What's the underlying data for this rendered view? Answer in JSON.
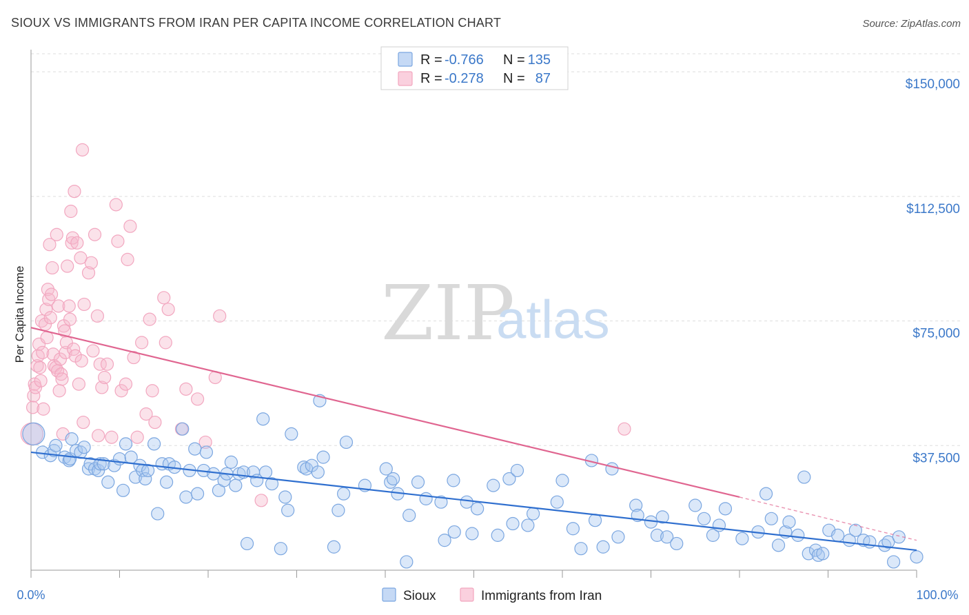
{
  "title": "SIOUX VS IMMIGRANTS FROM IRAN PER CAPITA INCOME CORRELATION CHART",
  "source": "Source: ZipAtlas.com",
  "watermark": {
    "zip": "ZIP",
    "atlas": "atlas"
  },
  "legend": {
    "rows": [
      {
        "r_label": "R =",
        "r_value": "-0.766",
        "n_label": "N =",
        "n_value": "135",
        "color": "#7aa6e0"
      },
      {
        "r_label": "R =",
        "r_value": "-0.278",
        "n_label": "N =",
        "n_value": "87",
        "color": "#f2a6bf"
      }
    ]
  },
  "bottom_legend": [
    {
      "label": "Sioux",
      "color": "#7aa6e0"
    },
    {
      "label": "Immigrants from Iran",
      "color": "#f2a6bf"
    }
  ],
  "chart_data": {
    "type": "scatter",
    "title": "SIOUX VS IMMIGRANTS FROM IRAN PER CAPITA INCOME CORRELATION CHART",
    "xlabel": "",
    "ylabel": "Per Capita Income",
    "xlim": [
      0,
      100
    ],
    "ylim": [
      0,
      155000
    ],
    "x_tick_labels": [
      "0.0%",
      "100.0%"
    ],
    "y_ticks": [
      37500,
      75000,
      112500,
      150000
    ],
    "y_tick_labels": [
      "$37,500",
      "$75,000",
      "$112,500",
      "$150,000"
    ],
    "grid": true,
    "series": [
      {
        "name": "Sioux",
        "color": "#7aa6e0",
        "line_color": "#2f6fcf",
        "trend": {
          "x": [
            0,
            100
          ],
          "y": [
            35500,
            6000
          ]
        },
        "points": [
          [
            0.3,
            41000
          ],
          [
            1.3,
            35500
          ],
          [
            2.2,
            34500
          ],
          [
            2.6,
            36000
          ],
          [
            2.8,
            37500
          ],
          [
            3.8,
            34000
          ],
          [
            4.3,
            33000
          ],
          [
            4.4,
            33500
          ],
          [
            4.6,
            39500
          ],
          [
            5.1,
            36000
          ],
          [
            5.6,
            35500
          ],
          [
            6.0,
            37000
          ],
          [
            6.5,
            30500
          ],
          [
            6.7,
            32000
          ],
          [
            7.2,
            30500
          ],
          [
            7.6,
            30000
          ],
          [
            7.8,
            32000
          ],
          [
            8.2,
            32000
          ],
          [
            8.7,
            26500
          ],
          [
            9.4,
            31500
          ],
          [
            10.0,
            33500
          ],
          [
            10.4,
            24000
          ],
          [
            10.7,
            38000
          ],
          [
            11.3,
            34000
          ],
          [
            11.8,
            28000
          ],
          [
            12.3,
            31500
          ],
          [
            12.6,
            30000
          ],
          [
            12.9,
            27500
          ],
          [
            13.2,
            30000
          ],
          [
            13.9,
            38000
          ],
          [
            14.3,
            17000
          ],
          [
            14.8,
            32000
          ],
          [
            15.3,
            26500
          ],
          [
            15.6,
            32000
          ],
          [
            16.2,
            31000
          ],
          [
            17.1,
            42500
          ],
          [
            17.5,
            22000
          ],
          [
            17.9,
            30000
          ],
          [
            18.8,
            23000
          ],
          [
            18.5,
            36500
          ],
          [
            19.5,
            30000
          ],
          [
            19.8,
            35500
          ],
          [
            20.6,
            29000
          ],
          [
            21.2,
            24000
          ],
          [
            21.8,
            27000
          ],
          [
            22.1,
            29000
          ],
          [
            22.6,
            32500
          ],
          [
            23.1,
            25500
          ],
          [
            23.5,
            29000
          ],
          [
            24.0,
            29500
          ],
          [
            24.4,
            8000
          ],
          [
            25.1,
            29500
          ],
          [
            25.5,
            27000
          ],
          [
            26.2,
            45500
          ],
          [
            26.5,
            29500
          ],
          [
            27.2,
            26000
          ],
          [
            28.2,
            6500
          ],
          [
            28.7,
            22000
          ],
          [
            29.0,
            18000
          ],
          [
            29.4,
            41000
          ],
          [
            30.8,
            31000
          ],
          [
            31.1,
            30500
          ],
          [
            31.7,
            31500
          ],
          [
            32.4,
            29500
          ],
          [
            32.6,
            51000
          ],
          [
            33.0,
            34000
          ],
          [
            34.2,
            7000
          ],
          [
            34.7,
            18000
          ],
          [
            35.3,
            23000
          ],
          [
            35.6,
            38500
          ],
          [
            37.7,
            25500
          ],
          [
            40.1,
            30500
          ],
          [
            40.6,
            26500
          ],
          [
            40.9,
            27500
          ],
          [
            41.4,
            23000
          ],
          [
            42.4,
            2500
          ],
          [
            42.7,
            16500
          ],
          [
            43.7,
            26500
          ],
          [
            44.6,
            21500
          ],
          [
            46.3,
            20500
          ],
          [
            46.7,
            9000
          ],
          [
            47.7,
            27000
          ],
          [
            47.8,
            11500
          ],
          [
            49.2,
            20500
          ],
          [
            49.8,
            11000
          ],
          [
            50.4,
            18500
          ],
          [
            52.2,
            25500
          ],
          [
            52.7,
            10500
          ],
          [
            54.0,
            27500
          ],
          [
            54.4,
            14000
          ],
          [
            54.9,
            30000
          ],
          [
            56.1,
            13500
          ],
          [
            56.7,
            17000
          ],
          [
            59.4,
            20500
          ],
          [
            60.0,
            27000
          ],
          [
            61.2,
            12500
          ],
          [
            62.1,
            6500
          ],
          [
            63.3,
            33000
          ],
          [
            63.7,
            15000
          ],
          [
            64.6,
            7000
          ],
          [
            65.6,
            30500
          ],
          [
            66.3,
            10000
          ],
          [
            68.3,
            19500
          ],
          [
            68.5,
            16500
          ],
          [
            70.0,
            14500
          ],
          [
            70.7,
            10500
          ],
          [
            71.3,
            16000
          ],
          [
            71.8,
            10000
          ],
          [
            72.9,
            8000
          ],
          [
            75.0,
            19500
          ],
          [
            76.0,
            15500
          ],
          [
            77.0,
            10500
          ],
          [
            77.7,
            13500
          ],
          [
            78.4,
            18500
          ],
          [
            80.3,
            9500
          ],
          [
            82.1,
            11500
          ],
          [
            83.0,
            23000
          ],
          [
            83.6,
            15500
          ],
          [
            84.4,
            7500
          ],
          [
            85.2,
            11500
          ],
          [
            85.6,
            14500
          ],
          [
            86.6,
            10500
          ],
          [
            87.3,
            28000
          ],
          [
            87.8,
            5000
          ],
          [
            88.6,
            6000
          ],
          [
            88.9,
            4500
          ],
          [
            89.4,
            5000
          ],
          [
            90.1,
            12000
          ],
          [
            91.1,
            10500
          ],
          [
            92.4,
            9000
          ],
          [
            93.1,
            12000
          ],
          [
            94.0,
            9000
          ],
          [
            94.7,
            8500
          ],
          [
            96.4,
            7500
          ],
          [
            96.8,
            8500
          ],
          [
            97.4,
            2500
          ],
          [
            98.0,
            10000
          ],
          [
            100.0,
            4000
          ]
        ]
      },
      {
        "name": "Immigrants from Iran",
        "color": "#f2a6bf",
        "line_color": "#e06590",
        "trend": {
          "x": [
            0,
            80
          ],
          "y": [
            73000,
            22000
          ]
        },
        "trend_dashed": {
          "x": [
            80,
            100
          ],
          "y": [
            22000,
            9000
          ]
        },
        "points": [
          [
            0.1,
            41000
          ],
          [
            0.2,
            49000
          ],
          [
            0.3,
            52500
          ],
          [
            0.4,
            56000
          ],
          [
            0.5,
            55000
          ],
          [
            0.7,
            61500
          ],
          [
            0.8,
            64500
          ],
          [
            0.9,
            68000
          ],
          [
            1.0,
            61000
          ],
          [
            1.1,
            57000
          ],
          [
            1.2,
            75000
          ],
          [
            1.3,
            65500
          ],
          [
            1.4,
            48500
          ],
          [
            1.6,
            74000
          ],
          [
            1.7,
            78500
          ],
          [
            1.8,
            70000
          ],
          [
            1.9,
            84500
          ],
          [
            2.0,
            81500
          ],
          [
            2.1,
            98000
          ],
          [
            2.2,
            76000
          ],
          [
            2.3,
            83000
          ],
          [
            2.4,
            91000
          ],
          [
            2.5,
            65000
          ],
          [
            2.6,
            61500
          ],
          [
            2.8,
            61000
          ],
          [
            2.9,
            101000
          ],
          [
            3.0,
            60000
          ],
          [
            3.1,
            79500
          ],
          [
            3.2,
            54000
          ],
          [
            3.3,
            63500
          ],
          [
            3.4,
            59000
          ],
          [
            3.5,
            57500
          ],
          [
            3.6,
            41000
          ],
          [
            3.7,
            73500
          ],
          [
            3.8,
            72000
          ],
          [
            3.9,
            65500
          ],
          [
            4.0,
            68500
          ],
          [
            4.1,
            91500
          ],
          [
            4.3,
            79500
          ],
          [
            4.4,
            75500
          ],
          [
            4.5,
            108000
          ],
          [
            4.6,
            98500
          ],
          [
            4.7,
            100000
          ],
          [
            4.8,
            66500
          ],
          [
            4.9,
            114000
          ],
          [
            5.0,
            64500
          ],
          [
            5.2,
            98500
          ],
          [
            5.4,
            56000
          ],
          [
            5.6,
            94000
          ],
          [
            5.7,
            63000
          ],
          [
            5.8,
            126500
          ],
          [
            5.9,
            44500
          ],
          [
            6.0,
            80000
          ],
          [
            6.5,
            89500
          ],
          [
            6.8,
            92500
          ],
          [
            7.0,
            66000
          ],
          [
            7.2,
            101000
          ],
          [
            7.5,
            76500
          ],
          [
            7.6,
            40500
          ],
          [
            7.8,
            62000
          ],
          [
            8.0,
            55000
          ],
          [
            8.3,
            58000
          ],
          [
            8.6,
            62000
          ],
          [
            9.1,
            40000
          ],
          [
            9.6,
            110000
          ],
          [
            9.8,
            99000
          ],
          [
            10.2,
            54000
          ],
          [
            10.7,
            56000
          ],
          [
            10.9,
            93500
          ],
          [
            11.2,
            103500
          ],
          [
            11.6,
            64000
          ],
          [
            12.0,
            40000
          ],
          [
            12.5,
            68500
          ],
          [
            13.0,
            47000
          ],
          [
            13.4,
            75500
          ],
          [
            13.7,
            54000
          ],
          [
            14.0,
            44500
          ],
          [
            15.0,
            82000
          ],
          [
            15.2,
            68500
          ],
          [
            15.5,
            78500
          ],
          [
            17.0,
            42500
          ],
          [
            17.5,
            54500
          ],
          [
            18.8,
            51500
          ],
          [
            19.7,
            38500
          ],
          [
            20.8,
            58000
          ],
          [
            21.3,
            76500
          ],
          [
            26.0,
            21000
          ],
          [
            67.0,
            42500
          ]
        ]
      }
    ]
  }
}
